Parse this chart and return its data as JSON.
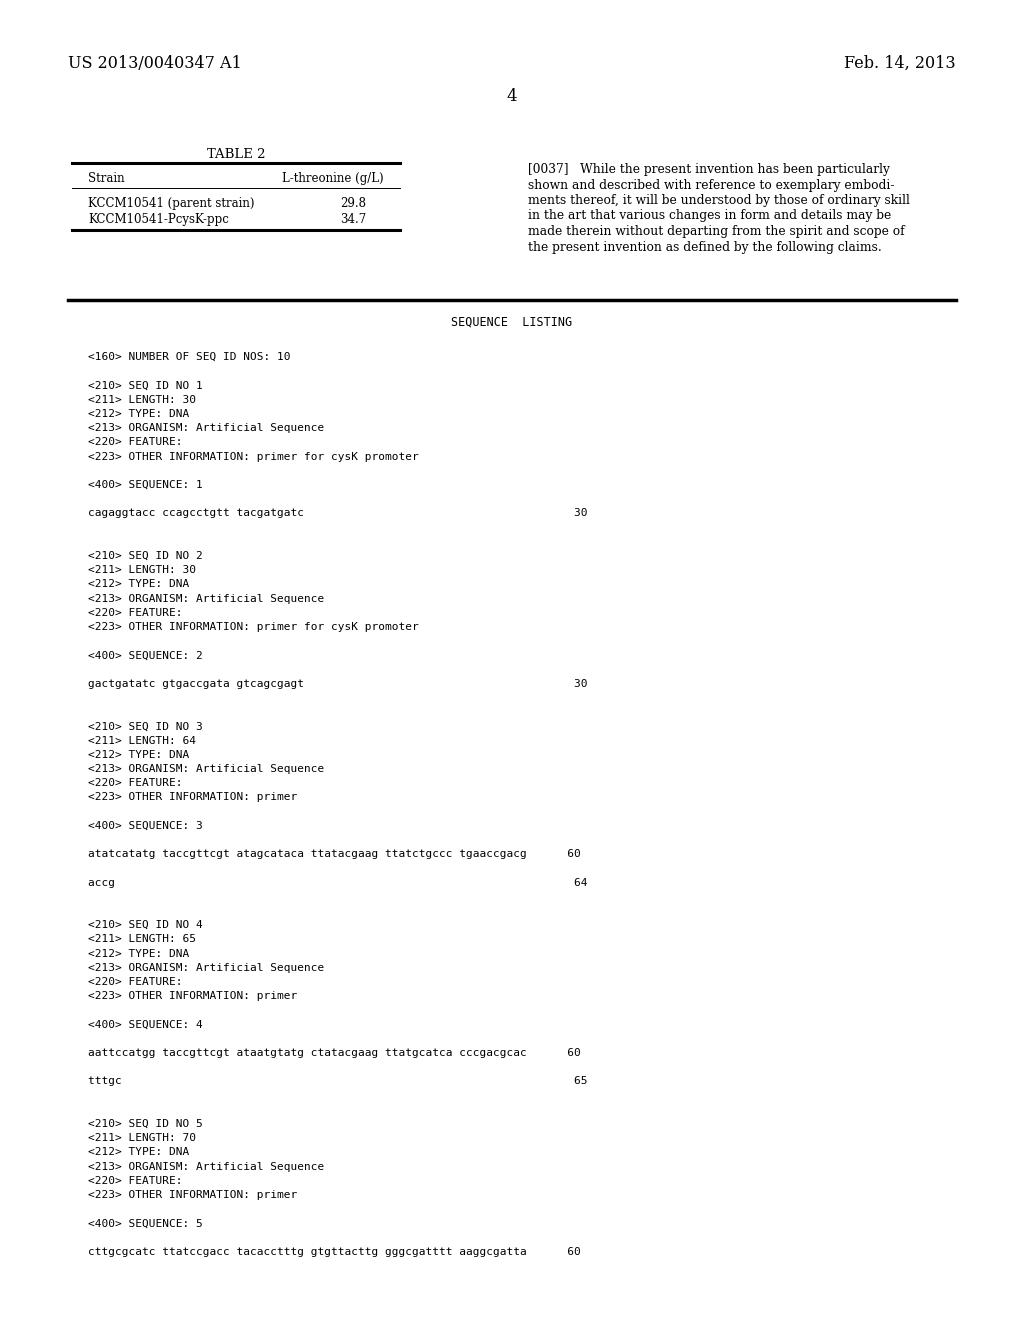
{
  "bg_color": "#ffffff",
  "header_left": "US 2013/0040347 A1",
  "header_right": "Feb. 14, 2013",
  "page_number": "4",
  "table_title": "TABLE 2",
  "table_col1_header": "Strain",
  "table_col2_header": "L-threonine (g/L)",
  "table_rows": [
    [
      "KCCM10541 (parent strain)",
      "29.8"
    ],
    [
      "KCCM10541-PcysK-ppc",
      "34.7"
    ]
  ],
  "para_lines": [
    "[0037]   While the present invention has been particularly",
    "shown and described with reference to exemplary embodi-",
    "ments thereof, it will be understood by those of ordinary skill",
    "in the art that various changes in form and details may be",
    "made therein without departing from the spirit and scope of",
    "the present invention as defined by the following claims."
  ],
  "sequence_listing_title": "SEQUENCE  LISTING",
  "monospace_lines": [
    "",
    "<160> NUMBER OF SEQ ID NOS: 10",
    "",
    "<210> SEQ ID NO 1",
    "<211> LENGTH: 30",
    "<212> TYPE: DNA",
    "<213> ORGANISM: Artificial Sequence",
    "<220> FEATURE:",
    "<223> OTHER INFORMATION: primer for cysK promoter",
    "",
    "<400> SEQUENCE: 1",
    "",
    "cagaggtacc ccagcctgtt tacgatgatc                                        30",
    "",
    "",
    "<210> SEQ ID NO 2",
    "<211> LENGTH: 30",
    "<212> TYPE: DNA",
    "<213> ORGANISM: Artificial Sequence",
    "<220> FEATURE:",
    "<223> OTHER INFORMATION: primer for cysK promoter",
    "",
    "<400> SEQUENCE: 2",
    "",
    "gactgatatc gtgaccgata gtcagcgagt                                        30",
    "",
    "",
    "<210> SEQ ID NO 3",
    "<211> LENGTH: 64",
    "<212> TYPE: DNA",
    "<213> ORGANISM: Artificial Sequence",
    "<220> FEATURE:",
    "<223> OTHER INFORMATION: primer",
    "",
    "<400> SEQUENCE: 3",
    "",
    "atatcatatg taccgttcgt atagcataca ttatacgaag ttatctgccc tgaaccgacg      60",
    "",
    "accg                                                                    64",
    "",
    "",
    "<210> SEQ ID NO 4",
    "<211> LENGTH: 65",
    "<212> TYPE: DNA",
    "<213> ORGANISM: Artificial Sequence",
    "<220> FEATURE:",
    "<223> OTHER INFORMATION: primer",
    "",
    "<400> SEQUENCE: 4",
    "",
    "aattccatgg taccgttcgt ataatgtatg ctatacgaag ttatgcatca cccgacgcac      60",
    "",
    "tttgc                                                                   65",
    "",
    "",
    "<210> SEQ ID NO 5",
    "<211> LENGTH: 70",
    "<212> TYPE: DNA",
    "<213> ORGANISM: Artificial Sequence",
    "<220> FEATURE:",
    "<223> OTHER INFORMATION: primer",
    "",
    "<400> SEQUENCE: 5",
    "",
    "cttgcgcatc ttatccgacc tacacctttg gtgttacttg gggcgatttt aaggcgatta      60"
  ]
}
